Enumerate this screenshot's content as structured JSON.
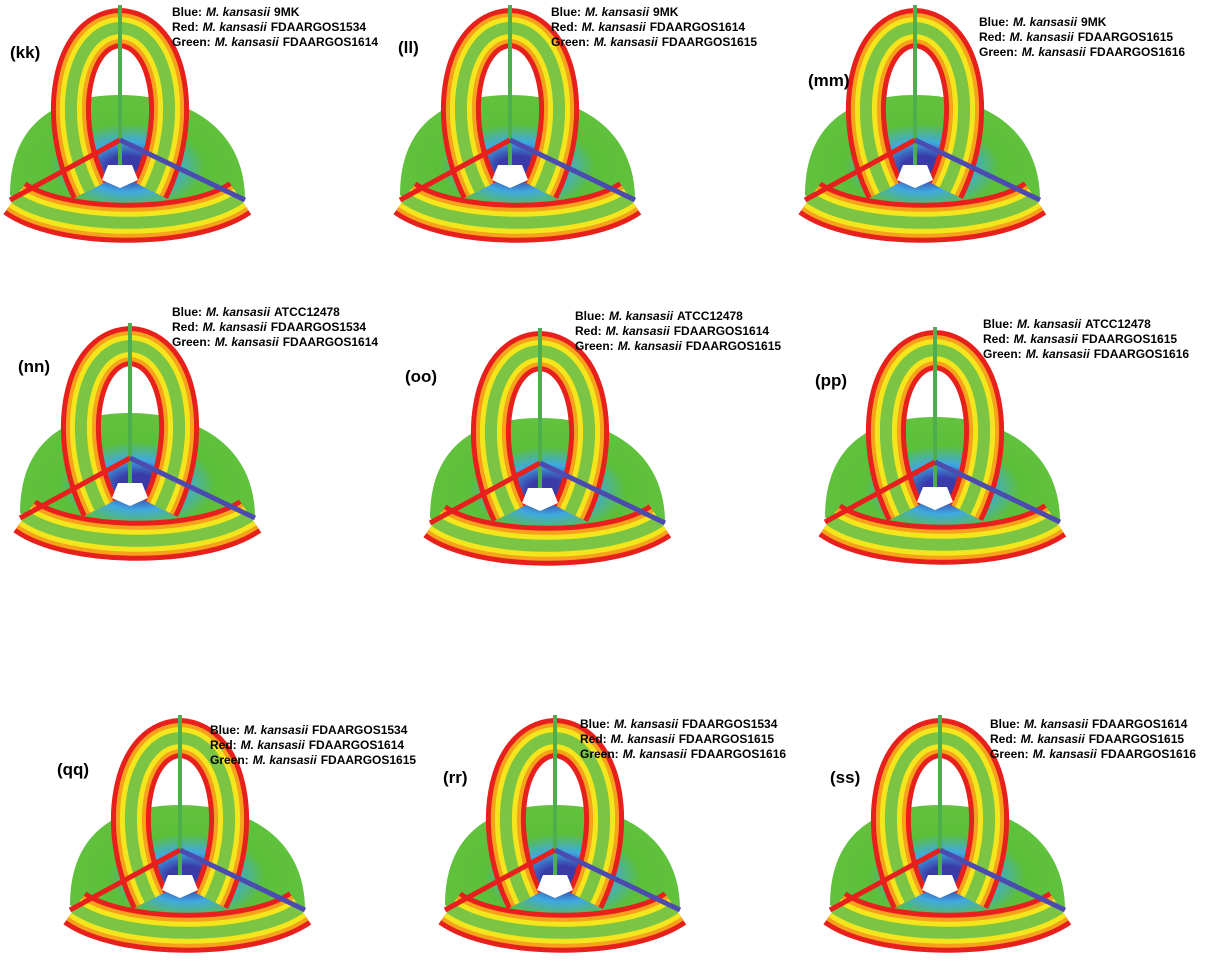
{
  "panels": [
    {
      "label": "(kk)",
      "lines": [
        {
          "role": "Blue:",
          "species": "M. kansasii",
          "strain": "9MK"
        },
        {
          "role": "Red:",
          "species": "M. kansasii",
          "strain": "FDAARGOS1534"
        },
        {
          "role": "Green:",
          "species": "M. kansasii",
          "strain": "FDAARGOS1614"
        }
      ]
    },
    {
      "label": "(ll)",
      "lines": [
        {
          "role": "Blue:",
          "species": "M. kansasii",
          "strain": "9MK"
        },
        {
          "role": "Red:",
          "species": "M. kansasii",
          "strain": "FDAARGOS1614"
        },
        {
          "role": "Green:",
          "species": "M. kansasii",
          "strain": "FDAARGOS1615"
        }
      ]
    },
    {
      "label": "(mm)",
      "lines": [
        {
          "role": "Blue:",
          "species": "M. kansasii",
          "strain": "9MK"
        },
        {
          "role": "Red:",
          "species": "M. kansasii",
          "strain": "FDAARGOS1615"
        },
        {
          "role": "Green:",
          "species": "M. kansasii",
          "strain": "FDAARGOS1616"
        }
      ]
    },
    {
      "label": "(nn)",
      "lines": [
        {
          "role": "Blue:",
          "species": "M. kansasii",
          "strain": "ATCC12478"
        },
        {
          "role": "Red:",
          "species": "M. kansasii",
          "strain": "FDAARGOS1534"
        },
        {
          "role": "Green:",
          "species": "M. kansasii",
          "strain": "FDAARGOS1614"
        }
      ]
    },
    {
      "label": "(oo)",
      "lines": [
        {
          "role": "Blue:",
          "species": "M. kansasii",
          "strain": "ATCC12478"
        },
        {
          "role": "Red:",
          "species": "M. kansasii",
          "strain": "FDAARGOS1614"
        },
        {
          "role": "Green:",
          "species": "M. kansasii",
          "strain": "FDAARGOS1615"
        }
      ]
    },
    {
      "label": "(pp)",
      "lines": [
        {
          "role": "Blue:",
          "species": "M. kansasii",
          "strain": "ATCC12478"
        },
        {
          "role": "Red:",
          "species": "M. kansasii",
          "strain": "FDAARGOS1615"
        },
        {
          "role": "Green:",
          "species": "M. kansasii",
          "strain": "FDAARGOS1616"
        }
      ]
    },
    {
      "label": "(qq)",
      "lines": [
        {
          "role": "Blue:",
          "species": "M. kansasii",
          "strain": "FDAARGOS1534"
        },
        {
          "role": "Red:",
          "species": "M. kansasii",
          "strain": "FDAARGOS1614"
        },
        {
          "role": "Green:",
          "species": "M. kansasii",
          "strain": "FDAARGOS1615"
        }
      ]
    },
    {
      "label": "(rr)",
      "lines": [
        {
          "role": "Blue:",
          "species": "M. kansasii",
          "strain": "FDAARGOS1534"
        },
        {
          "role": "Red:",
          "species": "M. kansasii",
          "strain": "FDAARGOS1615"
        },
        {
          "role": "Green:",
          "species": "M. kansasii",
          "strain": "FDAARGOS1616"
        }
      ]
    },
    {
      "label": "(ss)",
      "lines": [
        {
          "role": "Blue:",
          "species": "M. kansasii",
          "strain": "FDAARGOS1614"
        },
        {
          "role": "Red:",
          "species": "M. kansasii",
          "strain": "FDAARGOS1615"
        },
        {
          "role": "Green:",
          "species": "M. kansasii",
          "strain": "FDAARGOS1616"
        }
      ]
    }
  ]
}
